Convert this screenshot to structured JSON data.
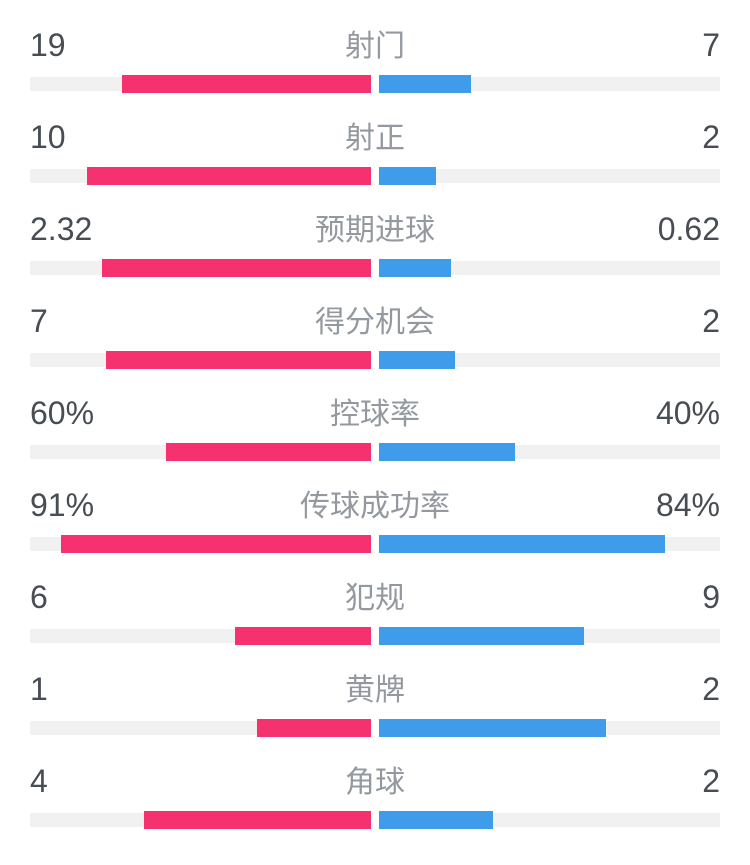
{
  "page": {
    "background": "#ffffff"
  },
  "colors": {
    "home": "#F5316F",
    "away": "#3F9CEA",
    "track": "#F1F1F2",
    "value_text": "#474D53",
    "label_text": "#94999F"
  },
  "chart_data": {
    "type": "bar",
    "variant": "paired-horizontal-stat-comparison",
    "title": "",
    "legend_position": "none",
    "grid": false,
    "series": [
      {
        "name": "home",
        "side": "left",
        "color": "#F5316F"
      },
      {
        "name": "away",
        "side": "right",
        "color": "#3F9CEA"
      }
    ],
    "rows": [
      {
        "label": "射门",
        "home_display": "19",
        "away_display": "7",
        "home": 19,
        "away": 7,
        "scale": "share"
      },
      {
        "label": "射正",
        "home_display": "10",
        "away_display": "2",
        "home": 10,
        "away": 2,
        "scale": "share"
      },
      {
        "label": "预期进球",
        "home_display": "2.32",
        "away_display": "0.62",
        "home": 2.32,
        "away": 0.62,
        "scale": "share"
      },
      {
        "label": "得分机会",
        "home_display": "7",
        "away_display": "2",
        "home": 7,
        "away": 2,
        "scale": "share"
      },
      {
        "label": "控球率",
        "home_display": "60%",
        "away_display": "40%",
        "home": 60,
        "away": 40,
        "scale": "percent"
      },
      {
        "label": "传球成功率",
        "home_display": "91%",
        "away_display": "84%",
        "home": 91,
        "away": 84,
        "scale": "percent"
      },
      {
        "label": "犯规",
        "home_display": "6",
        "away_display": "9",
        "home": 6,
        "away": 9,
        "scale": "share"
      },
      {
        "label": "黄牌",
        "home_display": "1",
        "away_display": "2",
        "home": 1,
        "away": 2,
        "scale": "share"
      },
      {
        "label": "角球",
        "home_display": "4",
        "away_display": "2",
        "home": 4,
        "away": 2,
        "scale": "share"
      }
    ]
  }
}
